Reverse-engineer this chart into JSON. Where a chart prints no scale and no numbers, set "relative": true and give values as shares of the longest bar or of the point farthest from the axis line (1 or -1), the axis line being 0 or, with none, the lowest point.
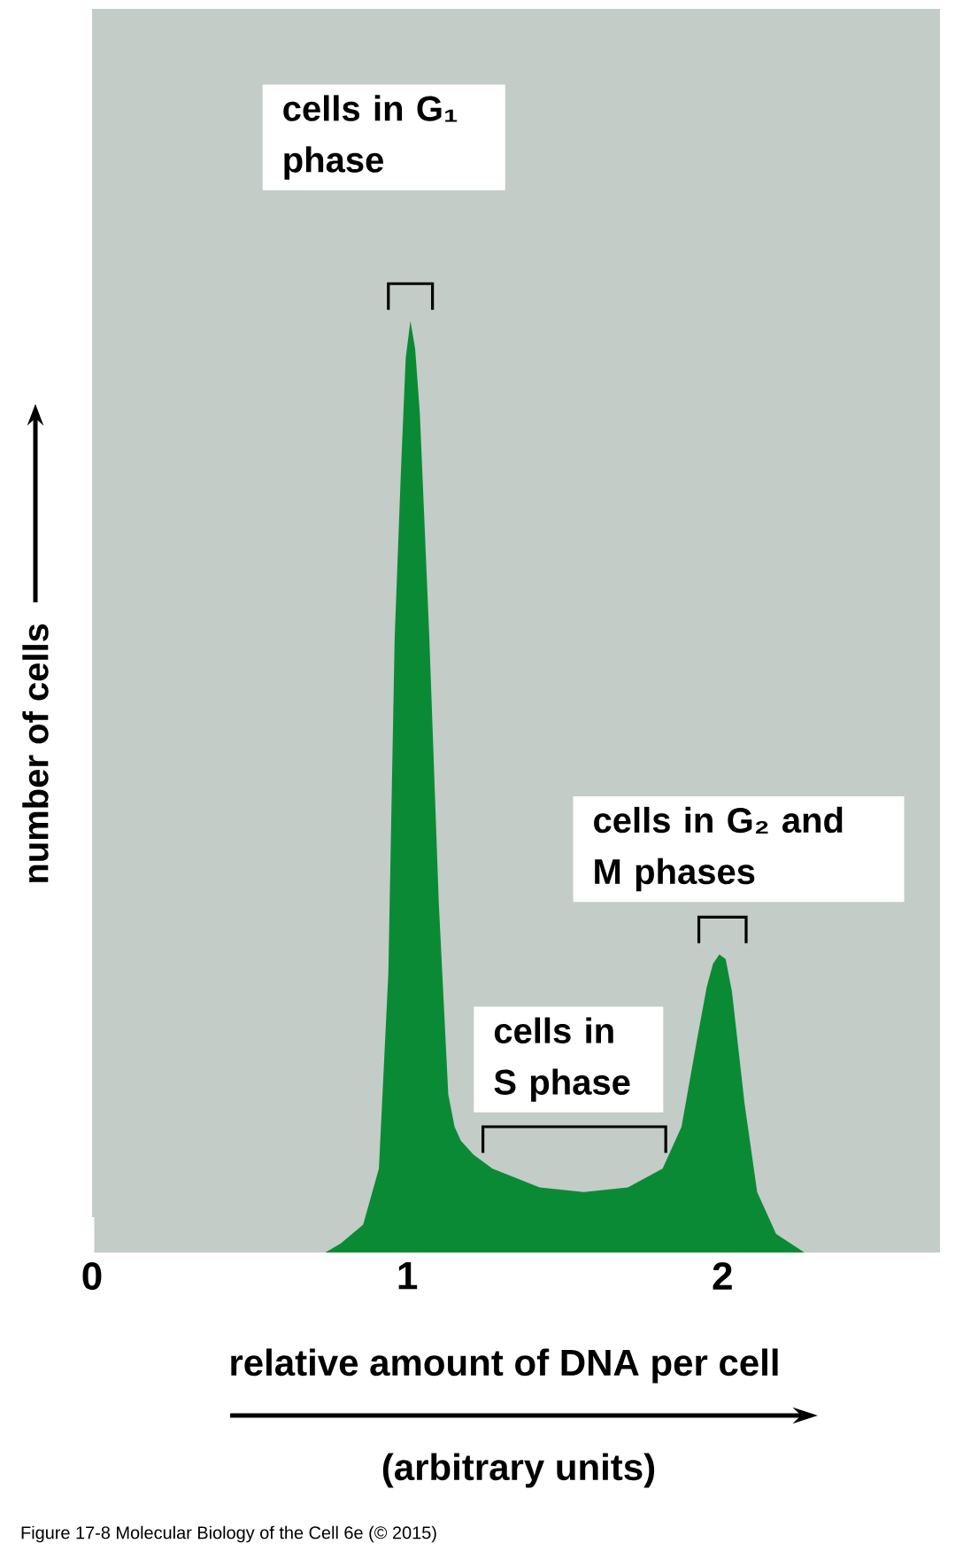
{
  "chart_data": {
    "type": "area",
    "relative": true,
    "color": "#0b8a36",
    "xlabel": "relative amount of DNA per cell",
    "ylabel": "number of cells",
    "xlim": [
      0,
      2.69
    ],
    "xticks": [
      0,
      1,
      2
    ],
    "grid": false,
    "x": [
      0.74,
      0.79,
      0.86,
      0.91,
      0.94,
      0.96,
      0.98,
      0.995,
      1.01,
      1.025,
      1.04,
      1.055,
      1.07,
      1.1,
      1.13,
      1.15,
      1.17,
      1.21,
      1.27,
      1.42,
      1.56,
      1.7,
      1.81,
      1.87,
      1.92,
      1.95,
      1.97,
      1.99,
      2.01,
      2.03,
      2.07,
      2.11,
      2.17,
      2.26
    ],
    "values": [
      0,
      0.01,
      0.03,
      0.09,
      0.3,
      0.66,
      0.84,
      0.96,
      1.0,
      0.97,
      0.9,
      0.78,
      0.66,
      0.375,
      0.17,
      0.135,
      0.12,
      0.105,
      0.09,
      0.07,
      0.065,
      0.07,
      0.09,
      0.135,
      0.23,
      0.285,
      0.31,
      0.32,
      0.315,
      0.28,
      0.16,
      0.065,
      0.02,
      0
    ],
    "annotations": [
      "cells in G₁ phase",
      {
        "text": "cells in G₂ and M phases",
        "x": 2.0,
        "y": 0.32
      },
      {
        "text": "cells in S phase",
        "x": 1.53,
        "y": 0.065
      },
      "(arbitrary units)",
      "Figure 17-8  Molecular Biology of the Cell 6e (© 2015)"
    ]
  }
}
